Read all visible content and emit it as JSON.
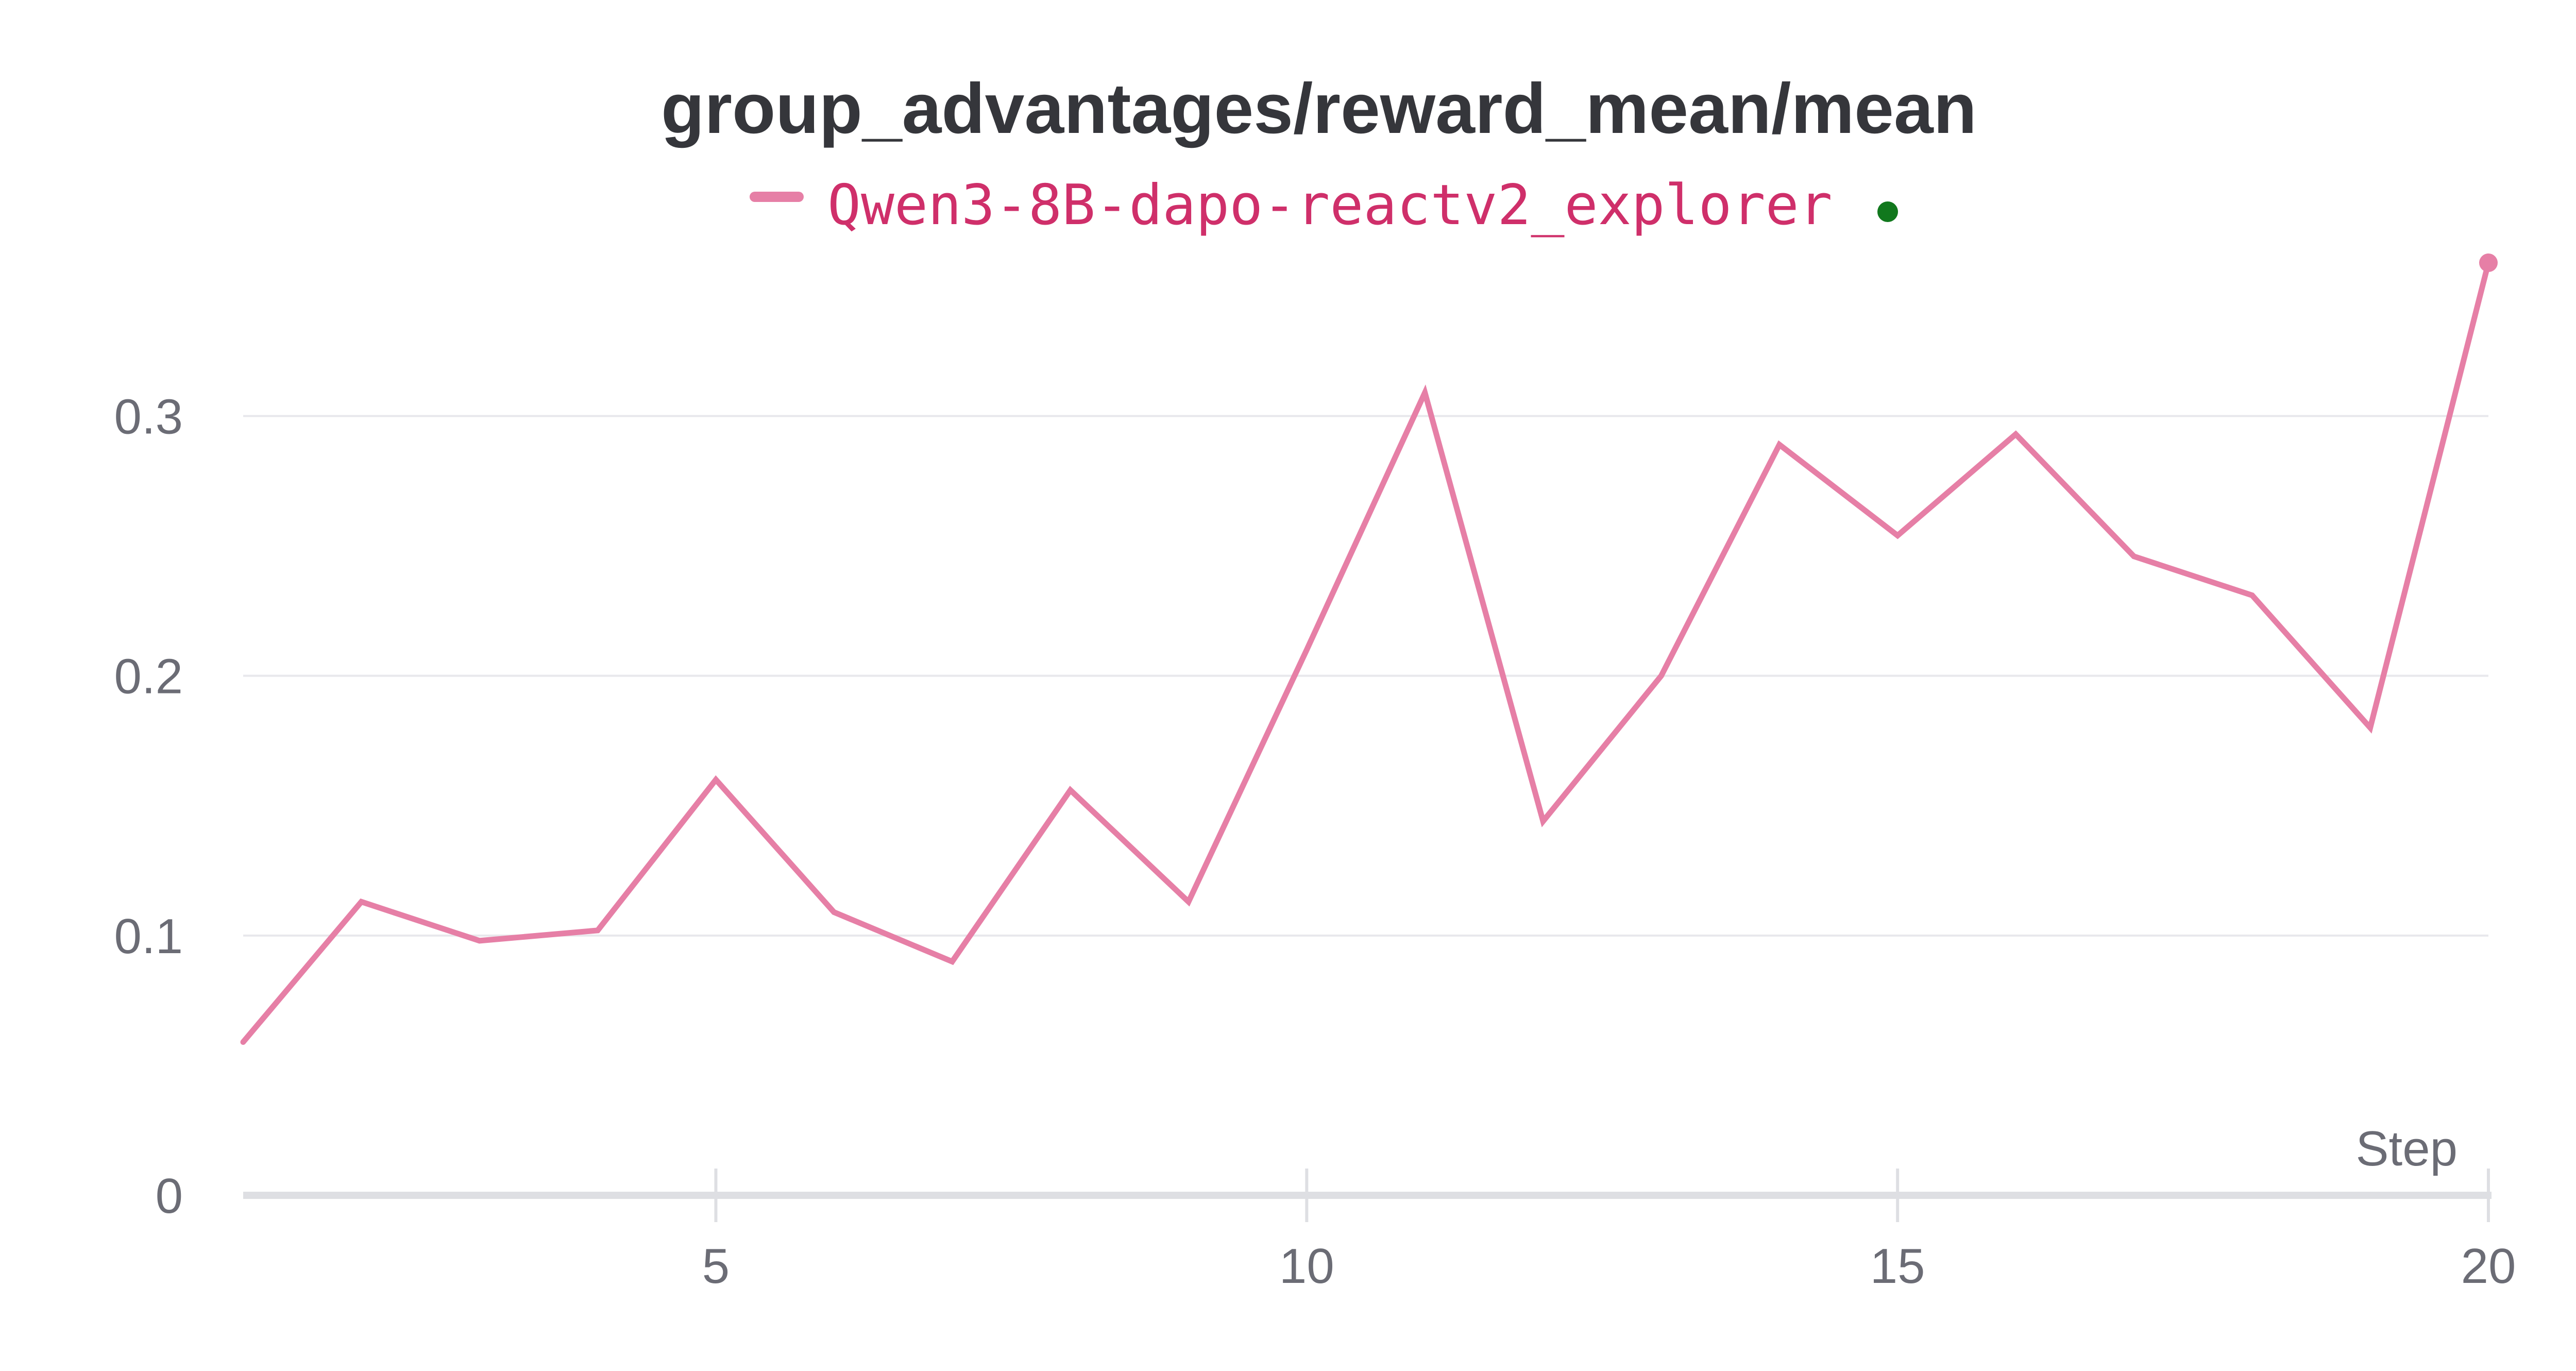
{
  "chart_data": {
    "type": "line",
    "title": "group_advantages/reward_mean/mean",
    "xlabel": "Step",
    "ylabel": "",
    "xlim": [
      1,
      20
    ],
    "ylim": [
      0,
      0.36
    ],
    "x_ticks": [
      "5",
      "10",
      "15",
      "20"
    ],
    "y_ticks": [
      "0",
      "0.1",
      "0.2",
      "0.3"
    ],
    "grid": "horizontal",
    "legend_position": "top-center",
    "series": [
      {
        "name": "Qwen3-8B-dapo-reactv2_explorer",
        "color": "#e67fa6",
        "label_color": "#cf2f6a",
        "status_dot_color": "#11781d",
        "x": [
          1,
          2,
          3,
          4,
          5,
          6,
          7,
          8,
          9,
          10,
          11,
          12,
          13,
          14,
          15,
          16,
          17,
          18,
          19,
          20
        ],
        "values": [
          0.059,
          0.113,
          0.098,
          0.102,
          0.16,
          0.109,
          0.09,
          0.156,
          0.113,
          0.21,
          0.309,
          0.144,
          0.2,
          0.289,
          0.254,
          0.293,
          0.246,
          0.231,
          0.18,
          0.359
        ]
      }
    ]
  }
}
